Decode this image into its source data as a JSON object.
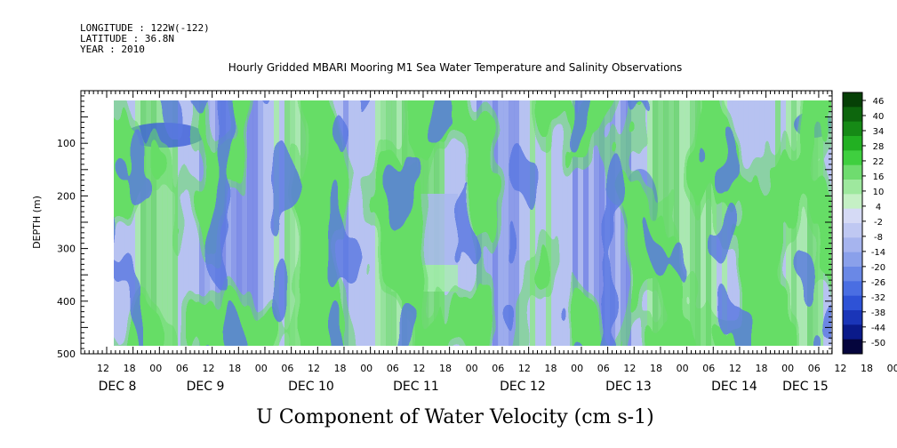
{
  "header": {
    "longitude": "LONGITUDE : 122W(-122)",
    "latitude": "LATITUDE : 36.8N",
    "year": "YEAR : 2010",
    "title": "Hourly Gridded MBARI Mooring M1 Sea Water Temperature and Salinity Observations"
  },
  "chart_data": {
    "type": "heatmap",
    "title": "Hourly Gridded MBARI Mooring M1 Sea Water Temperature and Salinity Observations",
    "xlabel": "U Component of Water Velocity (cm s-1)",
    "ylabel": "DEPTH (m)",
    "ylim": [
      500,
      0
    ],
    "y_inverted": true,
    "y_ticks": [
      100,
      200,
      300,
      400,
      500
    ],
    "x_hour_ticks": [
      "12",
      "18",
      "00",
      "06",
      "12",
      "18",
      "00",
      "06",
      "12",
      "18",
      "00",
      "06",
      "12",
      "18",
      "00",
      "06",
      "12",
      "18",
      "00",
      "06",
      "12",
      "18",
      "00",
      "06",
      "12",
      "18",
      "00",
      "06",
      "12",
      "18",
      "00",
      "06"
    ],
    "x_date_labels": [
      "DEC 8",
      "DEC 9",
      "DEC 10",
      "DEC 11",
      "DEC 12",
      "DEC 13",
      "DEC 14",
      "DEC 15"
    ],
    "data_depth_range": [
      20,
      485
    ],
    "colorbar": {
      "levels": [
        "46",
        "40",
        "34",
        "28",
        "22",
        "16",
        "10",
        "4",
        "-2",
        "-8",
        "-14",
        "-20",
        "-26",
        "-32",
        "-38",
        "-44",
        "-50"
      ],
      "min": -50,
      "max": 50,
      "colors": [
        "#05053d",
        "#0a1a8a",
        "#1a35b8",
        "#2e52d6",
        "#4a6ee2",
        "#6a88e6",
        "#8aa0ea",
        "#a6b4ee",
        "#bfc8f2",
        "#d5daf5",
        "#c5f0c5",
        "#9ee89e",
        "#6fdc6f",
        "#3fcf3f",
        "#22b022",
        "#168a16",
        "#0d660d",
        "#064006"
      ]
    }
  }
}
